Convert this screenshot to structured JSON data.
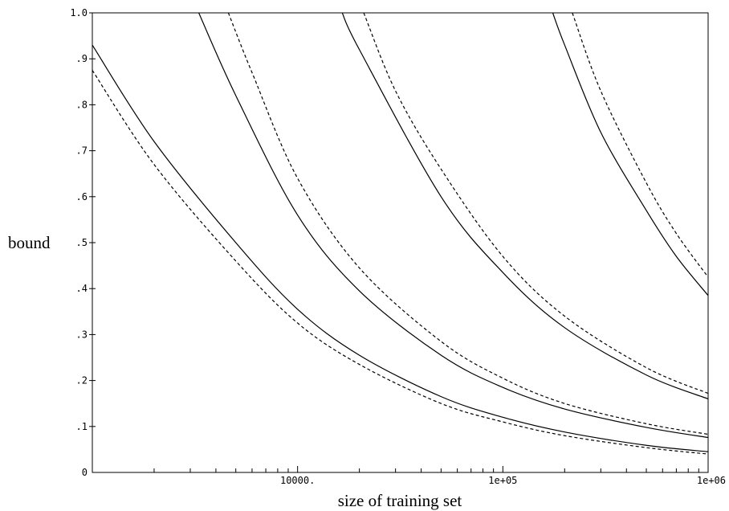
{
  "chart_data": {
    "type": "line",
    "title": "",
    "xlabel": "size of training set",
    "ylabel": "bound",
    "x_scale": "log",
    "xlim": [
      1000,
      1000000
    ],
    "ylim": [
      0,
      1.0
    ],
    "grid": false,
    "x_tick_labels": [
      {
        "value": 10000,
        "label": "10000."
      },
      {
        "value": 100000,
        "label": "1e+05"
      },
      {
        "value": 1000000,
        "label": "1e+06"
      }
    ],
    "y_tick_labels": [
      {
        "value": 0,
        "label": "0"
      },
      {
        "value": 0.1,
        "label": ".1"
      },
      {
        "value": 0.2,
        "label": ".2"
      },
      {
        "value": 0.3,
        "label": ".3"
      },
      {
        "value": 0.4,
        "label": ".4"
      },
      {
        "value": 0.5,
        "label": ".5"
      },
      {
        "value": 0.6,
        "label": ".6"
      },
      {
        "value": 0.7,
        "label": ".7"
      },
      {
        "value": 0.8,
        "label": ".8"
      },
      {
        "value": 0.9,
        "label": ".9"
      },
      {
        "value": 1.0,
        "label": "1.0"
      }
    ],
    "series": [
      {
        "style": "solid",
        "color": "#000000",
        "x": [
          1000,
          2000,
          5000,
          10000,
          20000,
          50000,
          100000,
          200000,
          500000,
          1000000
        ],
        "y": [
          0.93,
          0.72,
          0.5,
          0.355,
          0.255,
          0.165,
          0.12,
          0.088,
          0.059,
          0.045
        ]
      },
      {
        "style": "dashed",
        "color": "#000000",
        "x": [
          1000,
          2000,
          5000,
          10000,
          20000,
          50000,
          100000,
          200000,
          500000,
          1000000
        ],
        "y": [
          0.875,
          0.67,
          0.46,
          0.325,
          0.235,
          0.15,
          0.11,
          0.08,
          0.054,
          0.04
        ]
      },
      {
        "style": "solid",
        "color": "#000000",
        "x": [
          3300,
          5000,
          10000,
          20000,
          50000,
          100000,
          200000,
          500000,
          1000000
        ],
        "y": [
          1.0,
          0.82,
          0.56,
          0.395,
          0.255,
          0.185,
          0.138,
          0.098,
          0.076
        ]
      },
      {
        "style": "dashed",
        "color": "#000000",
        "x": [
          4600,
          6000,
          10000,
          20000,
          50000,
          100000,
          200000,
          500000,
          1000000
        ],
        "y": [
          1.0,
          0.87,
          0.64,
          0.445,
          0.285,
          0.205,
          0.15,
          0.106,
          0.083
        ]
      },
      {
        "style": "solid",
        "color": "#000000",
        "x": [
          16500,
          20000,
          50000,
          100000,
          200000,
          500000,
          1000000
        ],
        "y": [
          1.0,
          0.92,
          0.6,
          0.435,
          0.315,
          0.212,
          0.16
        ]
      },
      {
        "style": "dashed",
        "color": "#000000",
        "x": [
          21000,
          30000,
          50000,
          100000,
          200000,
          500000,
          1000000
        ],
        "y": [
          1.0,
          0.83,
          0.66,
          0.47,
          0.34,
          0.228,
          0.172
        ]
      },
      {
        "style": "solid",
        "color": "#000000",
        "x": [
          175000,
          200000,
          300000,
          500000,
          700000,
          1000000
        ],
        "y": [
          1.0,
          0.93,
          0.74,
          0.57,
          0.47,
          0.385
        ]
      },
      {
        "style": "dashed",
        "color": "#000000",
        "x": [
          218000,
          300000,
          500000,
          700000,
          1000000
        ],
        "y": [
          1.0,
          0.83,
          0.63,
          0.52,
          0.425
        ]
      }
    ]
  }
}
